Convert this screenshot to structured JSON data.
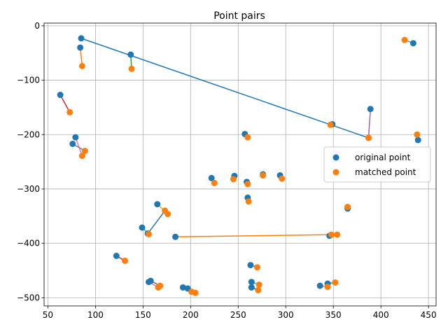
{
  "chart_data": {
    "type": "scatter",
    "title": "Point pairs",
    "xlabel": "",
    "ylabel": "",
    "xlim": [
      46,
      458
    ],
    "ylim": [
      -515,
      5
    ],
    "xticks": [
      50,
      100,
      150,
      200,
      250,
      300,
      350,
      400,
      450
    ],
    "yticks": [
      0,
      -100,
      -200,
      -300,
      -400,
      -500
    ],
    "grid": true,
    "legend": {
      "position": "center-right",
      "entries": [
        "original point",
        "matched point"
      ]
    },
    "colors": {
      "original": "#1f77b4",
      "matched": "#ff7f0e",
      "pair_lines": [
        "#1f77b4",
        "#ff7f0e",
        "#2ca02c",
        "#d62728",
        "#9467bd",
        "#8c564b",
        "#e377c2",
        "#7f7f7f",
        "#bcbd22",
        "#17becf"
      ]
    },
    "pairs": [
      {
        "original": [
          85,
          -23
        ],
        "matched": [
          387,
          -206
        ]
      },
      {
        "original": [
          84,
          -40
        ],
        "matched": [
          86,
          -74
        ]
      },
      {
        "original": [
          137,
          -53
        ],
        "matched": [
          138,
          -79
        ]
      },
      {
        "original": [
          63,
          -127
        ],
        "matched": [
          73,
          -159
        ]
      },
      {
        "original": [
          389,
          -153
        ],
        "matched": [
          387,
          -206
        ]
      },
      {
        "original": [
          349,
          -181
        ],
        "matched": [
          347,
          -182
        ]
      },
      {
        "original": [
          79,
          -205
        ],
        "matched": [
          86,
          -239
        ]
      },
      {
        "original": [
          76,
          -217
        ],
        "matched": [
          89,
          -230
        ]
      },
      {
        "original": [
          257,
          -199
        ],
        "matched": [
          260,
          -205
        ]
      },
      {
        "original": [
          434,
          -32
        ],
        "matched": [
          425,
          -26
        ]
      },
      {
        "original": [
          439,
          -210
        ],
        "matched": [
          438,
          -200
        ]
      },
      {
        "original": [
          222,
          -280
        ],
        "matched": [
          225,
          -289
        ]
      },
      {
        "original": [
          246,
          -276
        ],
        "matched": [
          245,
          -282
        ]
      },
      {
        "original": [
          259,
          -287
        ],
        "matched": [
          260,
          -291
        ]
      },
      {
        "original": [
          276,
          -273
        ],
        "matched": [
          276,
          -275
        ]
      },
      {
        "original": [
          294,
          -275
        ],
        "matched": [
          296,
          -281
        ]
      },
      {
        "original": [
          260,
          -316
        ],
        "matched": [
          261,
          -323
        ]
      },
      {
        "original": [
          365,
          -336
        ],
        "matched": [
          365,
          -333
        ]
      },
      {
        "original": [
          165,
          -328
        ],
        "matched": [
          176,
          -346
        ]
      },
      {
        "original": [
          149,
          -371
        ],
        "matched": [
          156,
          -383
        ]
      },
      {
        "original": [
          155,
          -382
        ],
        "matched": [
          173,
          -340
        ]
      },
      {
        "original": [
          184,
          -388
        ],
        "matched": [
          348,
          -384
        ]
      },
      {
        "original": [
          346,
          -386
        ],
        "matched": [
          354,
          -384
        ]
      },
      {
        "original": [
          122,
          -423
        ],
        "matched": [
          131,
          -432
        ]
      },
      {
        "original": [
          263,
          -440
        ],
        "matched": [
          270,
          -444
        ]
      },
      {
        "original": [
          158,
          -469
        ],
        "matched": [
          168,
          -478
        ]
      },
      {
        "original": [
          156,
          -471
        ],
        "matched": [
          166,
          -481
        ]
      },
      {
        "original": [
          192,
          -481
        ],
        "matched": [
          201,
          -489
        ]
      },
      {
        "original": [
          197,
          -483
        ],
        "matched": [
          205,
          -491
        ]
      },
      {
        "original": [
          264,
          -471
        ],
        "matched": [
          272,
          -476
        ]
      },
      {
        "original": [
          264,
          -481
        ],
        "matched": [
          271,
          -486
        ]
      },
      {
        "original": [
          336,
          -478
        ],
        "matched": [
          344,
          -480
        ]
      },
      {
        "original": [
          344,
          -474
        ],
        "matched": [
          352,
          -472
        ]
      }
    ]
  }
}
